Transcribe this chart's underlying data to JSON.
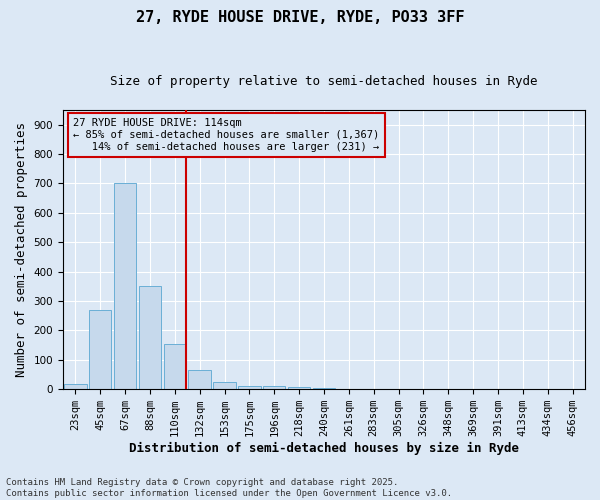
{
  "title": "27, RYDE HOUSE DRIVE, RYDE, PO33 3FF",
  "subtitle": "Size of property relative to semi-detached houses in Ryde",
  "xlabel": "Distribution of semi-detached houses by size in Ryde",
  "ylabel": "Number of semi-detached properties",
  "bar_color": "#c6d9ec",
  "bar_edge_color": "#6aafd6",
  "background_color": "#dce8f5",
  "categories": [
    "23sqm",
    "45sqm",
    "67sqm",
    "88sqm",
    "110sqm",
    "132sqm",
    "153sqm",
    "175sqm",
    "196sqm",
    "218sqm",
    "240sqm",
    "261sqm",
    "283sqm",
    "305sqm",
    "326sqm",
    "348sqm",
    "369sqm",
    "391sqm",
    "413sqm",
    "434sqm",
    "456sqm"
  ],
  "values": [
    18,
    270,
    700,
    350,
    155,
    65,
    25,
    10,
    10,
    8,
    5,
    2,
    0,
    0,
    0,
    0,
    0,
    0,
    0,
    0,
    0
  ],
  "ylim": [
    0,
    950
  ],
  "yticks": [
    0,
    100,
    200,
    300,
    400,
    500,
    600,
    700,
    800,
    900
  ],
  "vline_bin_index": 4,
  "vline_color": "#cc0000",
  "ann_line1": "27 RYDE HOUSE DRIVE: 114sqm",
  "ann_line2": "← 85% of semi-detached houses are smaller (1,367)",
  "ann_line3": "   14% of semi-detached houses are larger (231) →",
  "footer_text": "Contains HM Land Registry data © Crown copyright and database right 2025.\nContains public sector information licensed under the Open Government Licence v3.0.",
  "grid_color": "#ffffff",
  "title_fontsize": 11,
  "subtitle_fontsize": 9,
  "axis_label_fontsize": 9,
  "tick_fontsize": 7.5,
  "footer_fontsize": 6.5
}
